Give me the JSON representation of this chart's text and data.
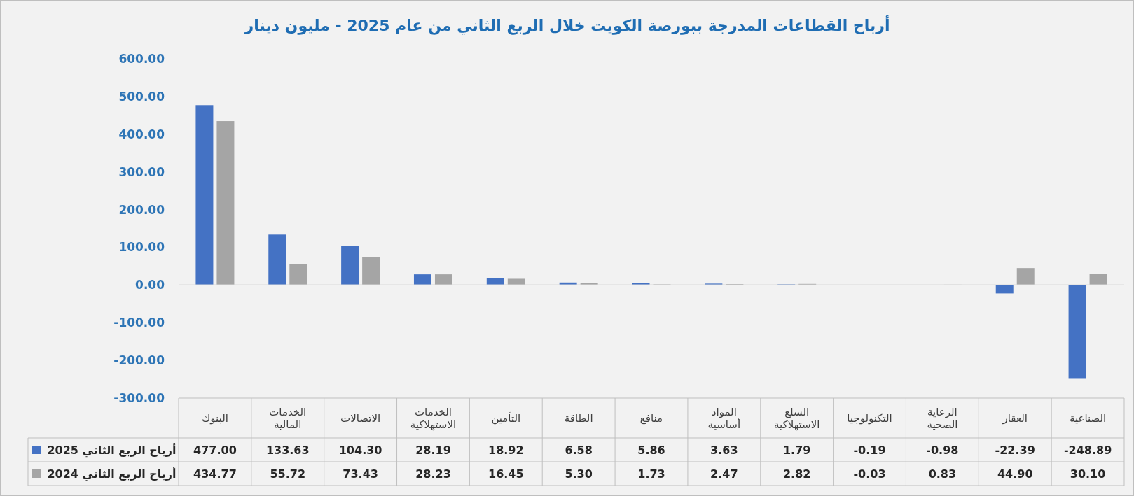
{
  "chart_data": {
    "type": "bar",
    "title": "أرباح القطاعات المدرجة ببورصة الكويت خلال الربع الثاني من عام 2025 - مليون دينار",
    "categories": [
      "البنوك",
      "الخدمات المالية",
      "الاتصالات",
      "الخدمات الاستهلاكية",
      "التأمين",
      "الطاقة",
      "منافع",
      "المواد أساسية",
      "السلع الاستهلاكية",
      "التكنولوجيا",
      "الرعاية الصحية",
      "العقار",
      "الصناعية"
    ],
    "series": [
      {
        "name": "أرباح الربع الثاني 2025",
        "color": "#4472c4",
        "values": [
          477.0,
          133.63,
          104.3,
          28.19,
          18.92,
          6.58,
          5.86,
          3.63,
          1.79,
          -0.19,
          -0.98,
          -22.39,
          -248.89
        ],
        "value_labels": [
          "477.00",
          "133.63",
          "104.30",
          "28.19",
          "18.92",
          "6.58",
          "5.86",
          "3.63",
          "1.79",
          "-0.19",
          "-0.98",
          "-22.39",
          "-248.89"
        ]
      },
      {
        "name": "أرباح الربع الثاني 2024",
        "color": "#a5a5a5",
        "values": [
          434.77,
          55.72,
          73.43,
          28.23,
          16.45,
          5.3,
          1.73,
          2.47,
          2.82,
          -0.03,
          0.83,
          44.9,
          30.1
        ],
        "value_labels": [
          "434.77",
          "55.72",
          "73.43",
          "28.23",
          "16.45",
          "5.30",
          "1.73",
          "2.47",
          "2.82",
          "-0.03",
          "0.83",
          "44.90",
          "30.10"
        ]
      }
    ],
    "ylim": [
      -300,
      600
    ],
    "yticks": [
      {
        "value": -300,
        "label": "-300.00"
      },
      {
        "value": -200,
        "label": "-200.00"
      },
      {
        "value": -100,
        "label": "-100.00"
      },
      {
        "value": 0,
        "label": "0.00"
      },
      {
        "value": 100,
        "label": "100.00"
      },
      {
        "value": 200,
        "label": "200.00"
      },
      {
        "value": 300,
        "label": "300.00"
      },
      {
        "value": 400,
        "label": "400.00"
      },
      {
        "value": 500,
        "label": "500.00"
      },
      {
        "value": 600,
        "label": "600.00"
      }
    ],
    "legend": "bottom"
  }
}
